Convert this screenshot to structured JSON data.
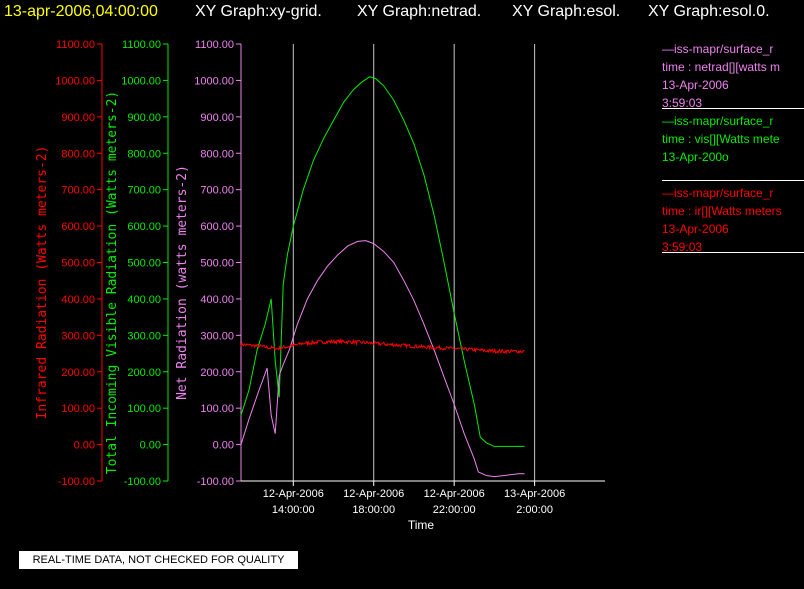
{
  "header": {
    "timestamp": "13-apr-2006,04:00:00",
    "graphs": [
      "XY Graph:xy-grid.",
      "XY Graph:netrad.",
      "XY Graph:esol.",
      "XY Graph:esol.0."
    ]
  },
  "colors": {
    "infrared": "#ff0000",
    "visible": "#00ee00",
    "net": "#ee82ee",
    "axis": "#ffffff",
    "timestamp": "#ffff00"
  },
  "legend": [
    {
      "color_key": "net",
      "lines": [
        "—iss-mapr/surface_r",
        "time : netrad[][watts m",
        "13-Apr-2006",
        "3:59:03"
      ]
    },
    {
      "color_key": "visible",
      "lines": [
        "—iss-mapr/surface_r",
        "time : vis[][Watts mete",
        "13-Apr-200o"
      ]
    },
    {
      "color_key": "infrared",
      "lines": [
        "—iss-mapr/surface_r",
        "time : ir[][Watts meters",
        "13-Apr-2006",
        "3:59:03"
      ]
    }
  ],
  "quality_note": "REAL-TIME DATA, NOT CHECKED FOR QUALITY",
  "chart_data": {
    "type": "line",
    "xlabel": "Time",
    "x_units": "hours since 12-Apr-2006 00:00",
    "xlim": [
      11.4,
      29.5
    ],
    "x_ticks": [
      {
        "x": 14,
        "label": [
          "12-Apr-2006",
          "14:00:00"
        ]
      },
      {
        "x": 18,
        "label": [
          "12-Apr-2006",
          "18:00:00"
        ]
      },
      {
        "x": 22,
        "label": [
          "12-Apr-2006",
          "22:00:00"
        ]
      },
      {
        "x": 26,
        "label": [
          "13-Apr-2006",
          "2:00:00"
        ]
      }
    ],
    "grid": true,
    "y_axes": [
      {
        "key": "infrared",
        "label": "Infrared Radiation (Watts meters-2)",
        "ylim": [
          -100,
          1100
        ],
        "ticks": [
          "-100.00",
          "0.00",
          "100.00",
          "200.00",
          "300.00",
          "400.00",
          "500.00",
          "600.00",
          "700.00",
          "800.00",
          "900.00",
          "1000.00",
          "1100.00"
        ]
      },
      {
        "key": "visible",
        "label": "Total Incoming Visible Radiation (Watts meters-2)",
        "ylim": [
          -100,
          1100
        ],
        "ticks": [
          "-100.00",
          "0.00",
          "100.00",
          "200.00",
          "300.00",
          "400.00",
          "500.00",
          "600.00",
          "700.00",
          "800.00",
          "900.00",
          "1000.00",
          "1100.00"
        ]
      },
      {
        "key": "net",
        "label": "Net Radiation (watts meters-2)",
        "ylim": [
          -100,
          1100
        ],
        "ticks": [
          "-100.00",
          "0.00",
          "100.00",
          "200.00",
          "300.00",
          "400.00",
          "500.00",
          "600.00",
          "700.00",
          "800.00",
          "900.00",
          "1000.00",
          "1100.00"
        ]
      }
    ],
    "series": [
      {
        "key": "visible",
        "axis": "visible",
        "noise": 0,
        "points": [
          [
            11.4,
            80
          ],
          [
            11.8,
            150
          ],
          [
            12.2,
            260
          ],
          [
            12.6,
            330
          ],
          [
            12.9,
            400
          ],
          [
            13.1,
            230
          ],
          [
            13.3,
            130
          ],
          [
            13.5,
            440
          ],
          [
            13.7,
            520
          ],
          [
            14.0,
            600
          ],
          [
            14.5,
            700
          ],
          [
            15.0,
            780
          ],
          [
            15.5,
            840
          ],
          [
            16.0,
            890
          ],
          [
            16.5,
            940
          ],
          [
            17.0,
            975
          ],
          [
            17.4,
            995
          ],
          [
            17.8,
            1010
          ],
          [
            18.1,
            1005
          ],
          [
            18.5,
            985
          ],
          [
            19.0,
            945
          ],
          [
            19.5,
            890
          ],
          [
            20.0,
            825
          ],
          [
            20.5,
            740
          ],
          [
            21.0,
            630
          ],
          [
            21.5,
            500
          ],
          [
            22.0,
            360
          ],
          [
            22.5,
            230
          ],
          [
            23.0,
            110
          ],
          [
            23.3,
            20
          ],
          [
            23.6,
            5
          ],
          [
            24.0,
            -5
          ],
          [
            24.5,
            -5
          ],
          [
            25.0,
            -5
          ],
          [
            25.5,
            -5
          ]
        ]
      },
      {
        "key": "net",
        "axis": "net",
        "noise": 0,
        "points": [
          [
            11.4,
            0
          ],
          [
            11.8,
            70
          ],
          [
            12.3,
            150
          ],
          [
            12.7,
            210
          ],
          [
            12.9,
            80
          ],
          [
            13.1,
            30
          ],
          [
            13.3,
            190
          ],
          [
            13.5,
            220
          ],
          [
            13.8,
            260
          ],
          [
            14.2,
            330
          ],
          [
            14.7,
            400
          ],
          [
            15.2,
            450
          ],
          [
            15.7,
            490
          ],
          [
            16.2,
            520
          ],
          [
            16.7,
            545
          ],
          [
            17.2,
            558
          ],
          [
            17.6,
            560
          ],
          [
            18.0,
            552
          ],
          [
            18.5,
            530
          ],
          [
            19.0,
            500
          ],
          [
            19.5,
            450
          ],
          [
            20.0,
            395
          ],
          [
            20.5,
            330
          ],
          [
            21.0,
            260
          ],
          [
            21.5,
            185
          ],
          [
            22.0,
            110
          ],
          [
            22.5,
            30
          ],
          [
            23.0,
            -40
          ],
          [
            23.2,
            -75
          ],
          [
            23.6,
            -85
          ],
          [
            24.0,
            -88
          ],
          [
            24.5,
            -85
          ],
          [
            25.2,
            -80
          ],
          [
            25.5,
            -80
          ]
        ]
      },
      {
        "key": "infrared",
        "axis": "infrared",
        "noise": 5,
        "points": [
          [
            11.4,
            275
          ],
          [
            12.0,
            272
          ],
          [
            12.6,
            268
          ],
          [
            13.2,
            263
          ],
          [
            13.8,
            270
          ],
          [
            14.5,
            278
          ],
          [
            15.5,
            282
          ],
          [
            16.5,
            283
          ],
          [
            17.5,
            280
          ],
          [
            18.5,
            276
          ],
          [
            19.5,
            272
          ],
          [
            20.5,
            268
          ],
          [
            21.5,
            265
          ],
          [
            22.5,
            262
          ],
          [
            23.5,
            258
          ],
          [
            24.5,
            256
          ],
          [
            25.5,
            256
          ]
        ]
      }
    ]
  }
}
